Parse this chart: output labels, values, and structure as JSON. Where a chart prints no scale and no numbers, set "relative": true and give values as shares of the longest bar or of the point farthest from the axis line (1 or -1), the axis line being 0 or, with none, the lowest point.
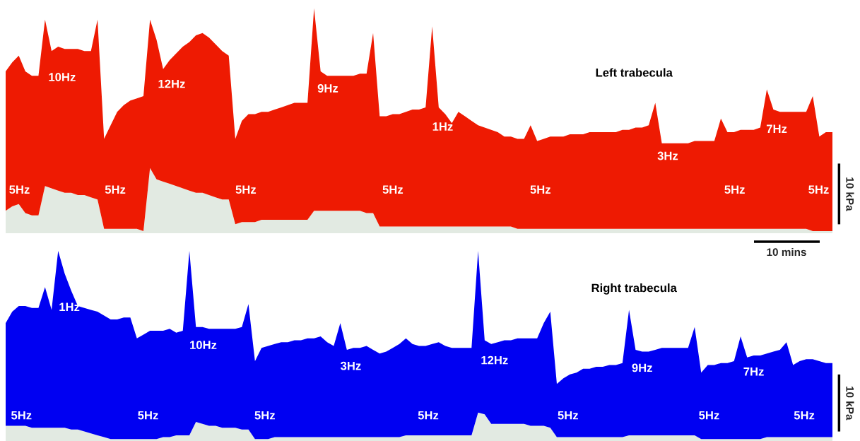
{
  "chart_data": [
    {
      "type": "area",
      "title": "Left trabecula",
      "relative": true,
      "stacked": true,
      "categories": [
        null,
        null,
        null,
        null,
        null,
        null,
        null,
        null,
        null,
        null,
        null,
        null,
        null,
        null,
        null,
        null,
        null,
        null,
        null,
        null,
        null,
        null,
        null,
        null,
        null,
        null,
        null,
        null,
        null,
        null,
        null,
        null,
        null,
        null,
        null,
        null,
        null,
        null,
        null,
        null,
        null,
        null,
        null,
        null,
        null,
        null,
        null,
        null,
        null,
        null,
        null,
        null,
        null,
        null,
        null,
        null,
        null,
        null,
        null,
        null,
        null,
        null,
        null,
        null,
        null,
        null,
        null,
        null,
        null,
        null,
        null,
        null,
        null,
        null,
        null,
        null,
        null,
        null,
        null,
        null,
        null,
        null,
        null,
        null,
        null,
        null,
        null,
        null,
        null,
        null,
        null,
        null,
        null,
        null,
        null,
        null,
        null,
        null,
        null,
        null,
        null,
        null,
        null,
        null,
        null,
        null,
        null,
        null,
        null,
        null,
        null,
        null,
        null,
        null,
        null,
        null,
        null,
        null,
        null,
        null,
        null,
        null,
        null,
        null,
        null,
        null,
        null
      ],
      "series": [
        {
          "color": "#e2eae2",
          "values": [
            0.1,
            0.12,
            0.13,
            0.09,
            0.08,
            0.08,
            0.21,
            0.2,
            0.19,
            0.18,
            0.18,
            0.17,
            0.17,
            0.16,
            0.15,
            0.02,
            0.02,
            0.02,
            0.02,
            0.02,
            0.02,
            0.01,
            0.29,
            0.24,
            0.23,
            0.22,
            0.21,
            0.2,
            0.19,
            0.18,
            0.18,
            0.17,
            0.16,
            0.15,
            0.15,
            0.04,
            0.05,
            0.05,
            0.05,
            0.06,
            0.06,
            0.06,
            0.06,
            0.06,
            0.06,
            0.06,
            0.06,
            0.1,
            0.1,
            0.1,
            0.1,
            0.1,
            0.1,
            0.1,
            0.1,
            0.09,
            0.09,
            0.03,
            0.03,
            0.03,
            0.03,
            0.03,
            0.03,
            0.03,
            0.03,
            0.03,
            0.03,
            0.03,
            0.03,
            0.03,
            0.03,
            0.03,
            0.03,
            0.03,
            0.03,
            0.03,
            0.03,
            0.03,
            0.02,
            0.02,
            0.02,
            0.02,
            0.02,
            0.02,
            0.02,
            0.02,
            0.02,
            0.02,
            0.02,
            0.02,
            0.02,
            0.02,
            0.02,
            0.02,
            0.02,
            0.02,
            0.02,
            0.02,
            0.02,
            0.02,
            0.02,
            0.02,
            0.02,
            0.02,
            0.02,
            0.02,
            0.02,
            0.02,
            0.02,
            0.02,
            0.02,
            0.02,
            0.02,
            0.02,
            0.02,
            0.02,
            0.02,
            0.02,
            0.02,
            0.02,
            0.02,
            0.02,
            0.02,
            0.01,
            0.01,
            0.01,
            0.01
          ]
        },
        {
          "color": "#ee1a02",
          "values": [
            0.62,
            0.64,
            0.66,
            0.63,
            0.62,
            0.62,
            0.74,
            0.61,
            0.64,
            0.64,
            0.64,
            0.65,
            0.64,
            0.65,
            0.8,
            0.4,
            0.46,
            0.52,
            0.55,
            0.57,
            0.58,
            0.6,
            0.66,
            0.62,
            0.5,
            0.55,
            0.59,
            0.63,
            0.66,
            0.7,
            0.71,
            0.7,
            0.68,
            0.66,
            0.64,
            0.38,
            0.45,
            0.48,
            0.48,
            0.48,
            0.48,
            0.49,
            0.5,
            0.51,
            0.52,
            0.52,
            0.52,
            0.9,
            0.62,
            0.6,
            0.6,
            0.6,
            0.6,
            0.6,
            0.61,
            0.62,
            0.8,
            0.49,
            0.49,
            0.5,
            0.5,
            0.51,
            0.52,
            0.52,
            0.53,
            0.89,
            0.53,
            0.5,
            0.46,
            0.51,
            0.49,
            0.47,
            0.45,
            0.44,
            0.43,
            0.42,
            0.4,
            0.4,
            0.4,
            0.4,
            0.46,
            0.39,
            0.4,
            0.41,
            0.41,
            0.41,
            0.42,
            0.42,
            0.42,
            0.43,
            0.43,
            0.43,
            0.43,
            0.43,
            0.44,
            0.44,
            0.45,
            0.45,
            0.46,
            0.56,
            0.38,
            0.38,
            0.38,
            0.38,
            0.38,
            0.39,
            0.39,
            0.39,
            0.39,
            0.49,
            0.43,
            0.43,
            0.44,
            0.44,
            0.44,
            0.45,
            0.62,
            0.53,
            0.52,
            0.52,
            0.52,
            0.52,
            0.52,
            0.6,
            0.42,
            0.44,
            0.44
          ]
        }
      ],
      "annotations": [
        "10Hz",
        "12Hz",
        "9Hz",
        "1Hz",
        "3Hz",
        "7Hz",
        "5Hz",
        "5Hz",
        "5Hz",
        "5Hz",
        "5Hz",
        "5Hz",
        "5Hz",
        "10 kPa",
        "10 mins"
      ]
    },
    {
      "type": "area",
      "title": "Right trabecula",
      "relative": true,
      "stacked": true,
      "categories": [
        null,
        null,
        null,
        null,
        null,
        null,
        null,
        null,
        null,
        null,
        null,
        null,
        null,
        null,
        null,
        null,
        null,
        null,
        null,
        null,
        null,
        null,
        null,
        null,
        null,
        null,
        null,
        null,
        null,
        null,
        null,
        null,
        null,
        null,
        null,
        null,
        null,
        null,
        null,
        null,
        null,
        null,
        null,
        null,
        null,
        null,
        null,
        null,
        null,
        null,
        null,
        null,
        null,
        null,
        null,
        null,
        null,
        null,
        null,
        null,
        null,
        null,
        null,
        null,
        null,
        null,
        null,
        null,
        null,
        null,
        null,
        null,
        null,
        null,
        null,
        null,
        null,
        null,
        null,
        null,
        null,
        null,
        null,
        null,
        null,
        null,
        null,
        null,
        null,
        null,
        null,
        null,
        null,
        null,
        null,
        null,
        null,
        null,
        null,
        null,
        null,
        null,
        null,
        null,
        null,
        null,
        null,
        null,
        null,
        null,
        null,
        null,
        null,
        null,
        null,
        null,
        null,
        null,
        null,
        null,
        null,
        null,
        null,
        null,
        null,
        null,
        null
      ],
      "series": [
        {
          "color": "#e2eae2",
          "values": [
            0.08,
            0.08,
            0.08,
            0.08,
            0.07,
            0.07,
            0.07,
            0.07,
            0.07,
            0.07,
            0.06,
            0.06,
            0.05,
            0.04,
            0.03,
            0.02,
            0.01,
            0.01,
            0.01,
            0.01,
            0.01,
            0.01,
            0.01,
            0.01,
            0.02,
            0.02,
            0.03,
            0.03,
            0.03,
            0.1,
            0.09,
            0.08,
            0.08,
            0.07,
            0.07,
            0.07,
            0.06,
            0.06,
            0.01,
            0.01,
            0.01,
            0.02,
            0.02,
            0.02,
            0.02,
            0.02,
            0.02,
            0.02,
            0.02,
            0.02,
            0.02,
            0.02,
            0.02,
            0.02,
            0.02,
            0.02,
            0.02,
            0.02,
            0.02,
            0.02,
            0.02,
            0.03,
            0.03,
            0.03,
            0.03,
            0.03,
            0.03,
            0.03,
            0.03,
            0.03,
            0.03,
            0.03,
            0.15,
            0.14,
            0.09,
            0.09,
            0.09,
            0.09,
            0.09,
            0.09,
            0.08,
            0.08,
            0.08,
            0.07,
            0.02,
            0.02,
            0.02,
            0.02,
            0.02,
            0.02,
            0.02,
            0.02,
            0.02,
            0.02,
            0.02,
            0.03,
            0.03,
            0.03,
            0.03,
            0.03,
            0.03,
            0.03,
            0.03,
            0.03,
            0.03,
            0.03,
            0.01,
            0.01,
            0.01,
            0.01,
            0.01,
            0.01,
            0.01,
            0.01,
            0.01,
            0.01,
            0.02,
            0.02,
            0.02,
            0.02,
            0.02,
            0.02,
            0.02,
            0.02,
            0.02,
            0.02,
            0.02
          ]
        },
        {
          "color": "#0000f2",
          "values": [
            0.54,
            0.6,
            0.63,
            0.63,
            0.63,
            0.63,
            0.74,
            0.62,
            0.93,
            0.81,
            0.73,
            0.65,
            0.65,
            0.65,
            0.65,
            0.64,
            0.63,
            0.63,
            0.64,
            0.64,
            0.53,
            0.55,
            0.57,
            0.57,
            0.56,
            0.57,
            0.54,
            0.55,
            0.97,
            0.5,
            0.51,
            0.51,
            0.51,
            0.52,
            0.52,
            0.52,
            0.54,
            0.66,
            0.41,
            0.48,
            0.49,
            0.49,
            0.5,
            0.5,
            0.51,
            0.51,
            0.52,
            0.52,
            0.53,
            0.5,
            0.48,
            0.6,
            0.46,
            0.47,
            0.47,
            0.48,
            0.46,
            0.44,
            0.45,
            0.47,
            0.49,
            0.51,
            0.48,
            0.47,
            0.47,
            0.48,
            0.49,
            0.47,
            0.46,
            0.46,
            0.46,
            0.46,
            0.85,
            0.39,
            0.42,
            0.43,
            0.44,
            0.44,
            0.45,
            0.45,
            0.46,
            0.46,
            0.54,
            0.61,
            0.28,
            0.31,
            0.33,
            0.34,
            0.36,
            0.36,
            0.37,
            0.37,
            0.38,
            0.38,
            0.39,
            0.66,
            0.45,
            0.44,
            0.44,
            0.45,
            0.46,
            0.46,
            0.46,
            0.46,
            0.46,
            0.57,
            0.35,
            0.39,
            0.39,
            0.4,
            0.4,
            0.41,
            0.54,
            0.43,
            0.44,
            0.44,
            0.44,
            0.45,
            0.46,
            0.5,
            0.38,
            0.4,
            0.41,
            0.41,
            0.4,
            0.39,
            0.39
          ]
        }
      ],
      "annotations": [
        "1Hz",
        "10Hz",
        "3Hz",
        "12Hz",
        "9Hz",
        "7Hz",
        "5Hz",
        "5Hz",
        "5Hz",
        "5Hz",
        "5Hz",
        "5Hz",
        "5Hz",
        "10 kPa"
      ]
    }
  ]
}
